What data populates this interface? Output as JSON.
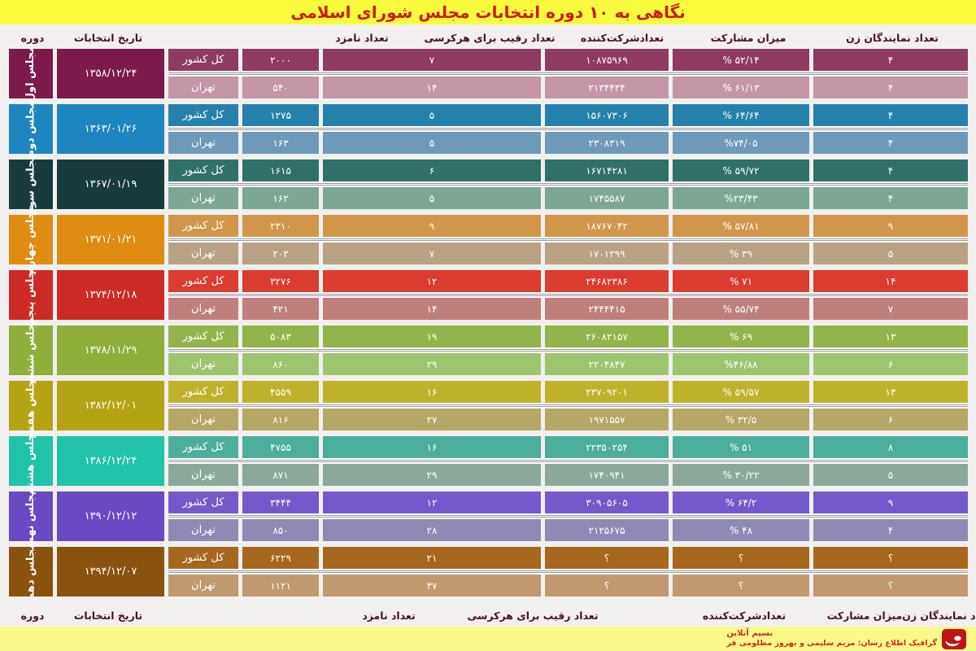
{
  "title": "نگاهی به ۱۰ دوره انتخابات  مجلس شورای اسلامی",
  "colors": {
    "title_bg": "#fbfb3d",
    "title_text": "#cb1b16",
    "header_text": "#4a1025",
    "footer_bg": "#f9f98b",
    "footer_text": "#c9301c",
    "logo_red": "#c01414",
    "page_bg": "#f1f0ee"
  },
  "footer": {
    "brand": "نسیم آنلاین",
    "credit": "گرافیک اطلاع رسان: مریم سلیمی و بهروز مظلومی فر",
    "logo": "nasim-online-logo"
  },
  "chart_data": {
    "type": "table",
    "title": "نگاهی به ۱۰ دوره انتخابات مجلس شورای اسلامی",
    "column_headers": [
      "دوره",
      "تاریخ انتخابات",
      "تعداد نامزد",
      "تعداد رقیب برای هرکرسی",
      "تعدادشرکت‌کننده",
      "میزان مشارکت",
      "تعداد نمایندگان زن"
    ],
    "region_labels": [
      "کل کشور",
      "تهران"
    ],
    "terms": [
      {
        "name": "مجلس اول",
        "date": "۱۳۵۸/۱۲/۲۴",
        "colors": {
          "label": "#7c1a4b",
          "country": "#8f3a60",
          "tehran": "#c495a6"
        },
        "country": {
          "candidates": "۲۰۰۰",
          "rivals_per_seat": "۷",
          "participants": "۱۰۸۷۵۹۶۹",
          "turnout": "% ۵۲/۱۴",
          "women_mps": "۴"
        },
        "tehran": {
          "candidates": "۵۴۰",
          "rivals_per_seat": "۱۴",
          "participants": "۲۱۳۴۴۳۴",
          "turnout": "% ۶۱/۱۳",
          "women_mps": "۴"
        }
      },
      {
        "name": "مجلس دوم",
        "date": "۱۳۶۳/۰۱/۲۶",
        "colors": {
          "label": "#1e86be",
          "country": "#2581ab",
          "tehran": "#7199b8"
        },
        "country": {
          "candidates": "۱۲۷۵",
          "rivals_per_seat": "۵",
          "participants": "۱۵۶۰۷۳۰۶",
          "turnout": "% ۶۴/۶۴",
          "women_mps": "۴"
        },
        "tehran": {
          "candidates": "۱۶۳",
          "rivals_per_seat": "۵",
          "participants": "۲۳۰۸۳۱۹",
          "turnout": "%۷۴/۰۵",
          "women_mps": "۴"
        }
      },
      {
        "name": "مجلس سوم",
        "date": "۱۳۶۷/۰۱/۱۹",
        "colors": {
          "label": "#183c3d",
          "country": "#2f7168",
          "tehran": "#7ca794"
        },
        "country": {
          "candidates": "۱۶۱۵",
          "rivals_per_seat": "۶",
          "participants": "۱۶۷۱۴۲۸۱",
          "turnout": "% ۵۹/۷۲",
          "women_mps": "۴"
        },
        "tehran": {
          "candidates": "۱۶۲",
          "rivals_per_seat": "۵",
          "participants": "۱۷۴۵۵۸۷",
          "turnout": "%۲۳/۴۳",
          "women_mps": "۴"
        }
      },
      {
        "name": "مجلس چهارم",
        "date": "۱۳۷۱/۰۱/۲۱",
        "colors": {
          "label": "#de8c12",
          "country": "#d2964a",
          "tehran": "#b9a284"
        },
        "country": {
          "candidates": "۲۳۱۰",
          "rivals_per_seat": "۹",
          "participants": "۱۸۷۶۷۰۴۲",
          "turnout": "% ۵۷/۸۱",
          "women_mps": "۹"
        },
        "tehran": {
          "candidates": "۲۰۲",
          "rivals_per_seat": "۷",
          "participants": "۱۷۰۱۲۹۹",
          "turnout": "% ۳۹",
          "women_mps": "۵"
        }
      },
      {
        "name": "مجلس پنجم",
        "date": "۱۳۷۴/۱۲/۱۸",
        "colors": {
          "label": "#cb2b24",
          "country": "#da3c30",
          "tehran": "#c07f7d"
        },
        "country": {
          "candidates": "۳۲۷۶",
          "rivals_per_seat": "۱۲",
          "participants": "۲۴۶۸۲۳۸۶",
          "turnout": "% ۷۱",
          "women_mps": "۱۴"
        },
        "tehran": {
          "candidates": "۴۲۱",
          "rivals_per_seat": "۱۴",
          "participants": "۲۴۴۴۴۱۵",
          "turnout": "% ۵۵/۷۴",
          "women_mps": "۷"
        }
      },
      {
        "name": "مجلس ششم",
        "date": "۱۳۷۸/۱۱/۲۹",
        "colors": {
          "label": "#8fae3c",
          "country": "#93b44a",
          "tehran": "#9ec56d"
        },
        "country": {
          "candidates": "۵۰۸۳",
          "rivals_per_seat": "۱۹",
          "participants": "۲۶۰۸۲۱۵۷",
          "turnout": "% ۶۹",
          "women_mps": "۱۳"
        },
        "tehran": {
          "candidates": "۸۶۰",
          "rivals_per_seat": "۲۹",
          "participants": "۲۲۰۴۸۴۷",
          "turnout": "%۴۶/۸۸",
          "women_mps": "۶"
        }
      },
      {
        "name": "مجلس هفتم",
        "date": "۱۳۸۲/۱۲/۰۱",
        "colors": {
          "label": "#b4a413",
          "country": "#bfb22b",
          "tehran": "#b5a765"
        },
        "country": {
          "candidates": "۴۵۵۹",
          "rivals_per_seat": "۱۶",
          "participants": "۲۳۷۰۹۲۰۱",
          "turnout": "% ۵۹/۵۷",
          "women_mps": "۱۳"
        },
        "tehran": {
          "candidates": "۸۱۶",
          "rivals_per_seat": "۲۷",
          "participants": "۱۹۷۱۵۵۷",
          "turnout": "% ۳۲/۵",
          "women_mps": "۶"
        }
      },
      {
        "name": "مجلس هشتم",
        "date": "۱۳۸۶/۱۲/۲۴",
        "colors": {
          "label": "#21c3a8",
          "country": "#4cae9c",
          "tehran": "#8aa99a"
        },
        "country": {
          "candidates": "۴۷۵۵",
          "rivals_per_seat": "۱۶",
          "participants": "۲۲۳۵۰۲۵۴",
          "turnout": "% ۵۱",
          "women_mps": "۸"
        },
        "tehran": {
          "candidates": "۸۷۱",
          "rivals_per_seat": "۲۹",
          "participants": "۱۷۴۰۹۴۱",
          "turnout": "% ۳۰/۲۲",
          "women_mps": "۵"
        }
      },
      {
        "name": "مجلس نهم",
        "date": "۱۳۹۰/۱۲/۱۲",
        "colors": {
          "label": "#6a4ac2",
          "country": "#7459cc",
          "tehran": "#8f8ab3"
        },
        "country": {
          "candidates": "۳۴۴۴",
          "rivals_per_seat": "۱۲",
          "participants": "۳۰۹۰۵۶۰۵",
          "turnout": "% ۶۴/۲",
          "women_mps": "۹"
        },
        "tehran": {
          "candidates": "۸۵۰",
          "rivals_per_seat": "۲۸",
          "participants": "۲۱۲۵۶۷۵",
          "turnout": "% ۴۸",
          "women_mps": "۴"
        }
      },
      {
        "name": "مجلس دهم",
        "date": "۱۳۹۴/۱۲/۰۷",
        "colors": {
          "label": "#8a520f",
          "country": "#a8671e",
          "tehran": "#c2986f"
        },
        "country": {
          "candidates": "۶۲۲۹",
          "rivals_per_seat": "۲۱",
          "participants": "؟",
          "turnout": "؟",
          "women_mps": "؟"
        },
        "tehran": {
          "candidates": "۱۱۲۱",
          "rivals_per_seat": "۳۷",
          "participants": "؟",
          "turnout": "؟",
          "women_mps": "؟"
        }
      }
    ]
  }
}
